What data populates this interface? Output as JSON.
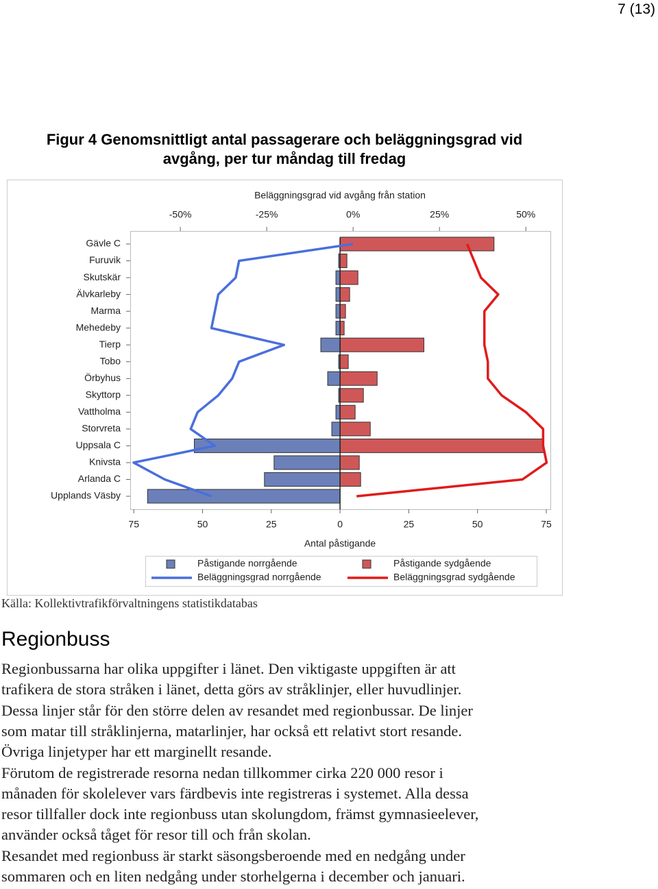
{
  "page_number": "7 (13)",
  "figure": {
    "caption": [
      "Figur 4  Genomsnittligt antal passagerare och beläggningsgrad vid",
      "avgång, per tur måndag till fredag"
    ]
  },
  "chart_data": {
    "type": "bar",
    "orientation": "horizontal",
    "x2label": "Beläggningsgrad vid avgång från station",
    "xlabel": "Antal påstigande",
    "categories": [
      "Gävle C",
      "Furuvik",
      "Skutskär",
      "Älvkarleby",
      "Marma",
      "Mehedeby",
      "Tierp",
      "Tobo",
      "Örbyhus",
      "Skyttorp",
      "Vattholma",
      "Storvreta",
      "Uppsala C",
      "Knivsta",
      "Arlanda C",
      "Upplands Väsby"
    ],
    "xlim": [
      -76.3,
      76.5
    ],
    "xticks": [
      {
        "value": -75,
        "label": "75"
      },
      {
        "value": -50,
        "label": "50"
      },
      {
        "value": -25,
        "label": "25"
      },
      0,
      25,
      50,
      75
    ],
    "x2lim": [
      -64.5,
      57.1
    ],
    "x2ticks": [
      {
        "value": -50,
        "label": "-50%"
      },
      {
        "value": -25,
        "label": "-25%"
      },
      {
        "value": 0,
        "label": "0%"
      },
      {
        "value": 25,
        "label": "25%"
      },
      {
        "value": 50,
        "label": "50%"
      }
    ],
    "series": [
      {
        "name": "Påstigande norrgående",
        "type": "bar",
        "color": "#6b80b8",
        "values": [
          0,
          -0.5,
          -1.5,
          -1.5,
          -1.5,
          -1.5,
          -7,
          -0.5,
          -4.5,
          -0.5,
          -1.5,
          -3,
          -53,
          -24,
          -27.5,
          -70
        ]
      },
      {
        "name": "Påstigande sydgående",
        "type": "bar",
        "color": "#d05757",
        "values": [
          56,
          2.5,
          6.5,
          3.5,
          2,
          1.5,
          30.5,
          3,
          13.5,
          8.5,
          5.5,
          11,
          74,
          7,
          7.5,
          0
        ]
      },
      {
        "name": "Beläggningsgrad norrgående",
        "type": "line",
        "axis": "x2",
        "color": "#4a6fdc",
        "values": [
          0,
          -33,
          -34,
          -39,
          -40,
          -41,
          -20,
          -33,
          -35,
          -39,
          -45,
          -47,
          -40,
          -63.5,
          -54.5,
          -41
        ]
      },
      {
        "name": "Beläggningsgrad sydgående",
        "type": "line",
        "axis": "x2",
        "color": "#e01b1b",
        "values": [
          33,
          35,
          37,
          42,
          38,
          38,
          38,
          39,
          39,
          43,
          50,
          55,
          55,
          56,
          49,
          1
        ]
      }
    ]
  },
  "source": "Källa: Kollektivtrafikförvaltningens statistikdatabas",
  "section": {
    "heading": "Regionbuss",
    "paragraphs": [
      [
        "Regionbussarna har olika uppgifter i länet. Den viktigaste uppgiften är att",
        "trafikera de stora stråken i länet, detta görs av stråklinjer, eller huvudlinjer.",
        "Dessa linjer står för den större delen av resandet med regionbussar. De linjer",
        "som matar till stråklinjerna, matarlinjer, har också ett relativt stort resande.",
        "Övriga linjetyper har ett marginellt resande."
      ],
      [
        "Förutom de registrerade resorna nedan tillkommer cirka 220 000 resor i",
        "månaden för skolelever vars färdbevis inte registreras i systemet. Alla dessa",
        "resor tillfaller dock inte regionbuss utan skolungdom, främst gymnasieelever,",
        "använder också tåget för resor till och från skolan."
      ],
      [
        "Resandet med regionbuss är starkt säsongsberoende med en nedgång under",
        "sommaren och en liten nedgång under storhelgerna i december och januari."
      ]
    ]
  }
}
